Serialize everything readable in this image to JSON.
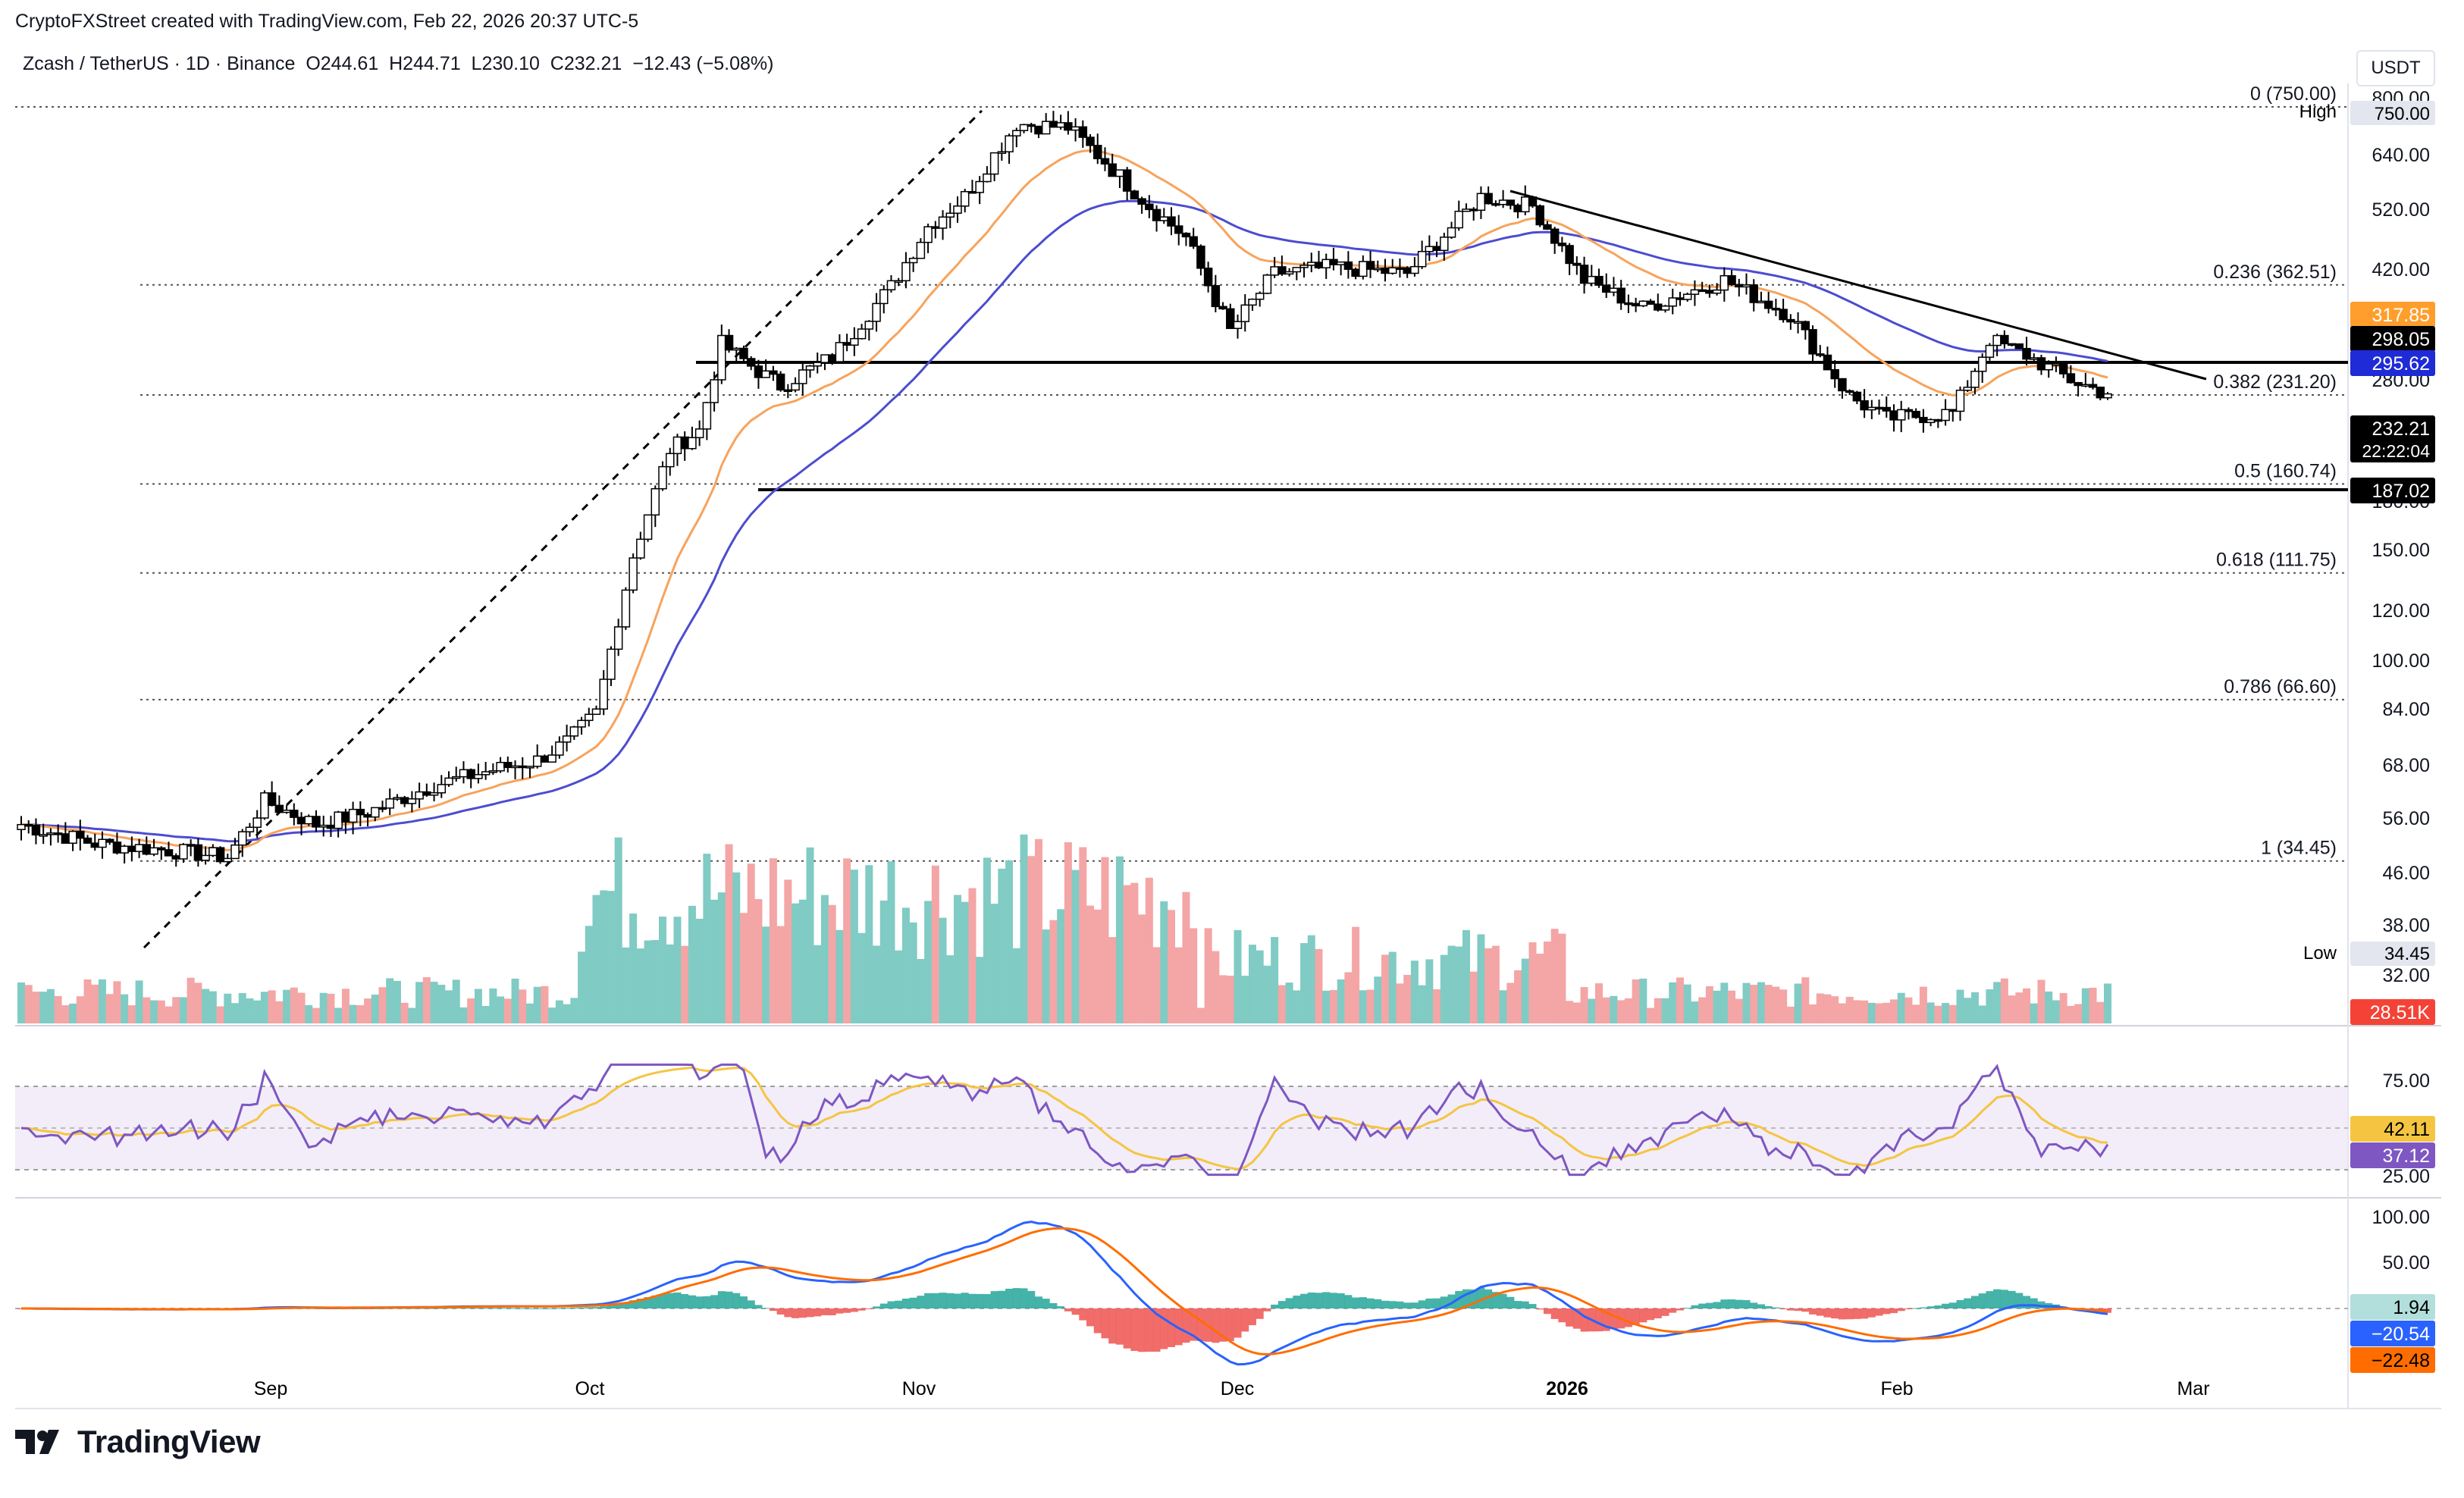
{
  "header": {
    "credit": "CryptoFXStreet created with TradingView.com, Feb 22, 2026 20:37 UTC-5",
    "symbol": "Zcash / TetherUS · 1D · Binance",
    "ohlc": "O244.61  H244.71  L230.10  C232.21  −12.43 (−5.08%)",
    "currency": "USDT"
  },
  "price_axis": {
    "ticks": [
      "800.00",
      "640.00",
      "520.00",
      "420.00",
      "280.00",
      "180.00",
      "150.00",
      "120.00",
      "100.00",
      "84.00",
      "68.00",
      "56.00",
      "46.00",
      "38.00",
      "32.00"
    ]
  },
  "badges": {
    "high_label": "High",
    "high_value": "750.00",
    "low_label": "Low",
    "low_value": "34.45",
    "ema50": "317.85",
    "level_298": "298.05",
    "ema200": "295.62",
    "last_price": "232.21",
    "countdown": "22:22:04",
    "support": "187.02",
    "volume": "28.51K",
    "rsi_ma": "42.11",
    "rsi": "37.12",
    "macd_hist": "1.94",
    "macd": "−20.54",
    "macd_signal": "−22.48"
  },
  "fib_levels": [
    {
      "label": "0 (750.00)",
      "price": 750
    },
    {
      "label": "0.236 (362.51)",
      "price": 362.51
    },
    {
      "label": "0.382 (231.20)",
      "price": 231.2
    },
    {
      "label": "0.5 (160.74)",
      "price": 160.74
    },
    {
      "label": "0.618 (111.75)",
      "price": 111.75
    },
    {
      "label": "0.786 (66.60)",
      "price": 66.6
    },
    {
      "label": "1 (34.45)",
      "price": 34.45
    }
  ],
  "rsi_axis": [
    "75.00",
    "25.00"
  ],
  "macd_axis": [
    "100.00",
    "50.00"
  ],
  "time_axis": [
    "Sep",
    "Oct",
    "Nov",
    "Dec",
    "2026",
    "Feb",
    "Mar"
  ],
  "colors": {
    "up": "#ffffff",
    "down": "#000000",
    "vol_up": "#80cbc4",
    "vol_down": "#f4a5a5",
    "ema50": "#f7a35c",
    "ema200": "#4c4ccf",
    "rsi": "#7e57c2",
    "rsi_ma": "#f5c542",
    "macd": "#2962ff",
    "signal": "#ff6d00",
    "hist_pos": "#26a69a",
    "hist_neg": "#ef5350"
  },
  "brand": "TradingView"
}
